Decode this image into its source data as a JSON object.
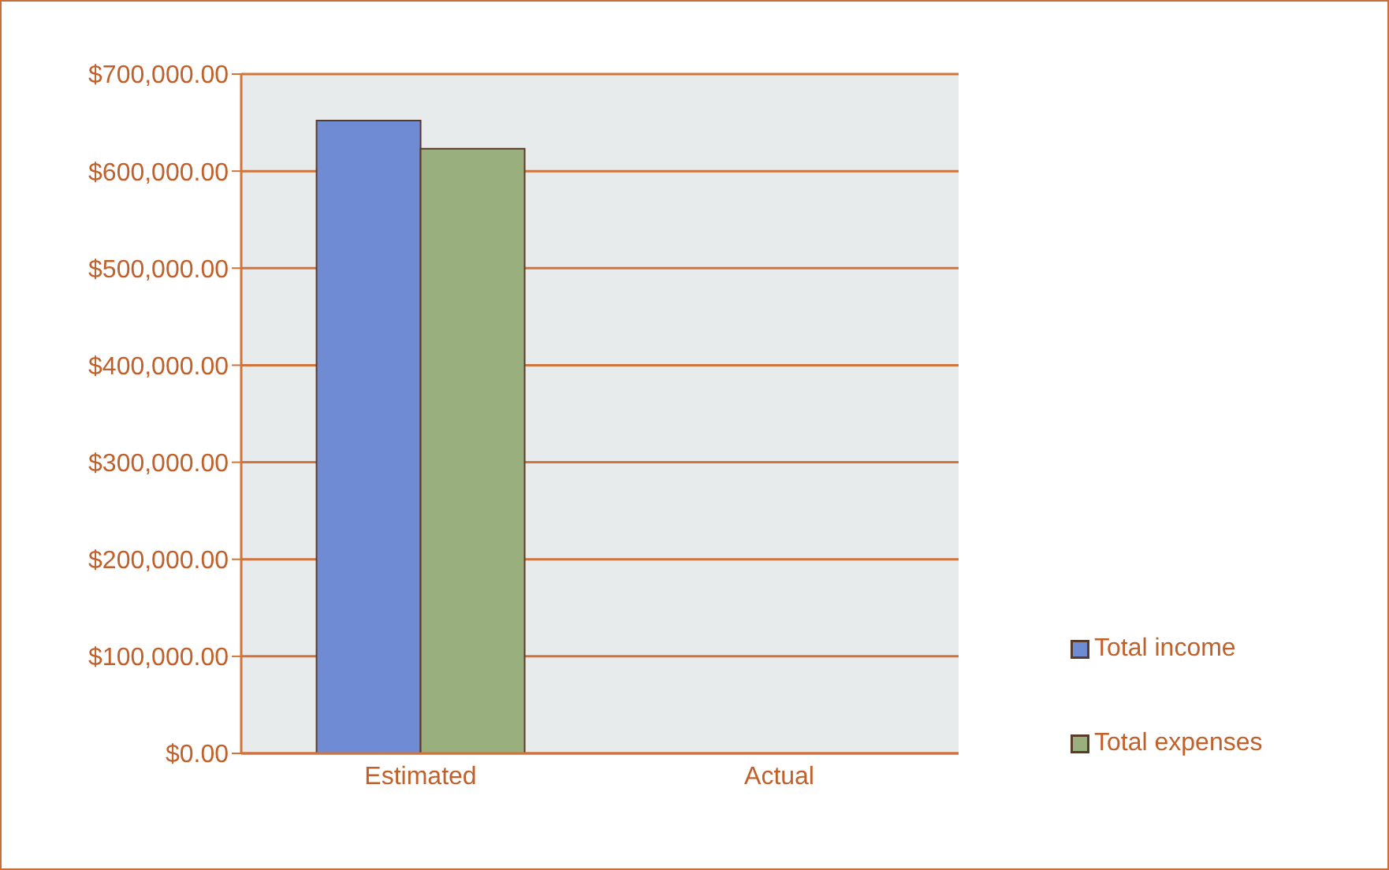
{
  "chart_data": {
    "type": "bar",
    "categories": [
      "Estimated",
      "Actual"
    ],
    "series": [
      {
        "name": "Total income",
        "color": "#6f8bd4",
        "values": [
          652000,
          null
        ]
      },
      {
        "name": "Total expenses",
        "color": "#9aaf7e",
        "values": [
          623000,
          null
        ]
      }
    ],
    "ylim": [
      0,
      700000
    ],
    "yticks": [
      {
        "value": 0,
        "label": "$0.00"
      },
      {
        "value": 100000,
        "label": "$100,000.00"
      },
      {
        "value": 200000,
        "label": "$200,000.00"
      },
      {
        "value": 300000,
        "label": "$300,000.00"
      },
      {
        "value": 400000,
        "label": "$400,000.00"
      },
      {
        "value": 500000,
        "label": "$500,000.00"
      },
      {
        "value": 600000,
        "label": "$600,000.00"
      },
      {
        "value": 700000,
        "label": "$700,000.00"
      }
    ],
    "grid": "y",
    "legend": "right"
  }
}
